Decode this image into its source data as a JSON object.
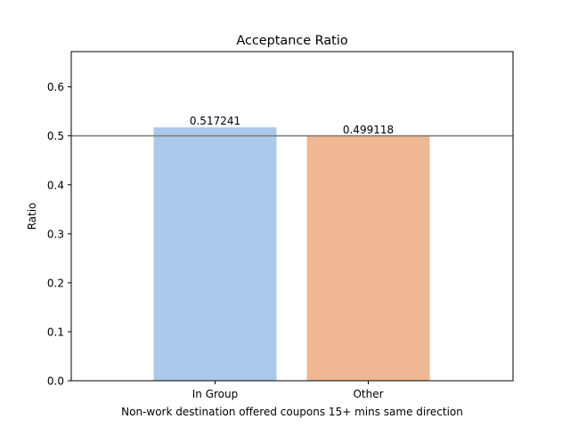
{
  "chart_data": {
    "type": "bar",
    "title": "Acceptance Ratio",
    "xlabel": "Non-work destination offered coupons 15+ mins same direction",
    "ylabel": "Ratio",
    "categories": [
      "In Group",
      "Other"
    ],
    "values": [
      0.517241,
      0.499118
    ],
    "value_labels": [
      "0.517241",
      "0.499118"
    ],
    "bar_colors": [
      "#abc9ea",
      "#efb792"
    ],
    "reference_line": {
      "y": 0.5,
      "color": "#808080"
    },
    "ylim": [
      0,
      0.672
    ],
    "yticks": [
      0.0,
      0.1,
      0.2,
      0.3,
      0.4,
      0.5,
      0.6
    ],
    "ytick_labels": [
      "0.0",
      "0.1",
      "0.2",
      "0.3",
      "0.4",
      "0.5",
      "0.6"
    ],
    "grid": false,
    "legend": "none"
  }
}
